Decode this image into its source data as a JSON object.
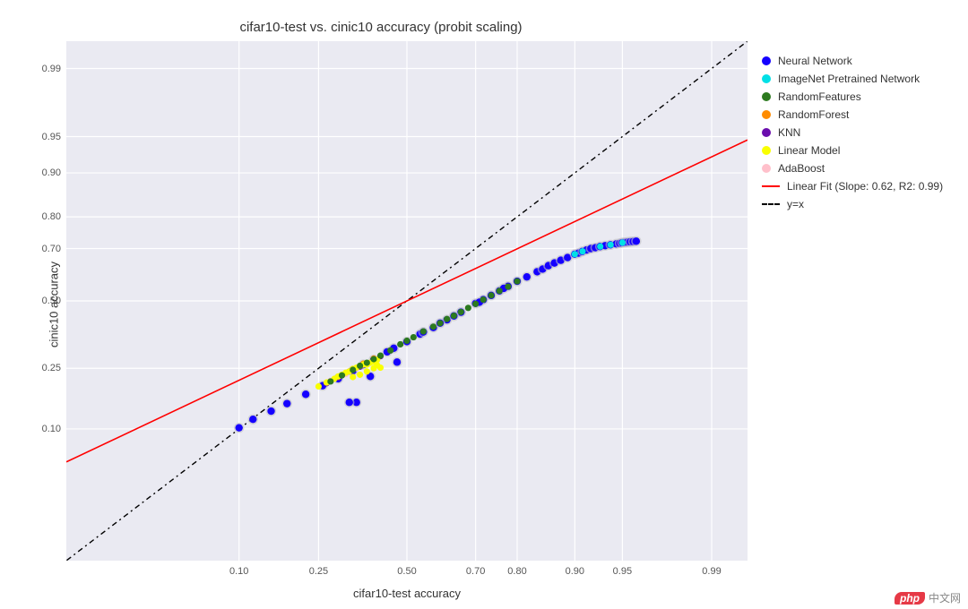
{
  "title": "cifar10-test vs. cinic10 accuracy (probit scaling)",
  "xlabel": "cifar10-test accuracy",
  "ylabel": "cinic10 accuracy",
  "background_color": "#eaeaf2",
  "grid_color": "#ffffff",
  "title_fontsize": 15,
  "label_fontsize": 13,
  "tick_fontsize": 11,
  "ticks": [
    0.1,
    0.25,
    0.5,
    0.7,
    0.8,
    0.9,
    0.95,
    0.99
  ],
  "probit_range": [
    -2.6,
    2.6
  ],
  "legend_items": [
    {
      "kind": "dot",
      "label": "Neural Network",
      "color": "#1500ff"
    },
    {
      "kind": "dot",
      "label": "ImageNet Pretrained Network",
      "color": "#00e0e6"
    },
    {
      "kind": "dot",
      "label": "RandomFeatures",
      "color": "#2d7a1f"
    },
    {
      "kind": "dot",
      "label": "RandomForest",
      "color": "#ff8c00"
    },
    {
      "kind": "dot",
      "label": "KNN",
      "color": "#6a0dad"
    },
    {
      "kind": "dot",
      "label": "Linear Model",
      "color": "#f9ff00"
    },
    {
      "kind": "dot",
      "label": "AdaBoost",
      "color": "#ffc0cb"
    },
    {
      "kind": "line",
      "label": "Linear Fit (Slope: 0.62, R2: 0.99)",
      "color": "#ff0000",
      "dash": "none"
    },
    {
      "kind": "line",
      "label": "y=x",
      "color": "#000000",
      "dash": "6,4,2,4"
    }
  ],
  "fit": {
    "slope": 0.62,
    "intercept": 0.0,
    "color": "#ff0000",
    "width": 1.6
  },
  "identity_line": {
    "color": "#000000",
    "width": 1.4,
    "dash": "6,4,2,4"
  },
  "marker_radius": 4.2,
  "series": {
    "Neural Network": {
      "color": "#1500ff",
      "xs": [
        0.1,
        0.12,
        0.15,
        0.18,
        0.22,
        0.26,
        0.3,
        0.34,
        0.37,
        0.4,
        0.44,
        0.46,
        0.5,
        0.54,
        0.58,
        0.62,
        0.66,
        0.7,
        0.72,
        0.74,
        0.76,
        0.78,
        0.8,
        0.82,
        0.84,
        0.85,
        0.86,
        0.87,
        0.88,
        0.89,
        0.9,
        0.905,
        0.91,
        0.915,
        0.92,
        0.925,
        0.93,
        0.935,
        0.94,
        0.945,
        0.948,
        0.95,
        0.952,
        0.954,
        0.956,
        0.958,
        0.96,
        0.47,
        0.39,
        0.35,
        0.33,
        0.55,
        0.6,
        0.64,
        0.71,
        0.77
      ],
      "ys": [
        0.102,
        0.118,
        0.135,
        0.152,
        0.175,
        0.198,
        0.218,
        0.242,
        0.262,
        0.278,
        0.305,
        0.318,
        0.342,
        0.37,
        0.395,
        0.425,
        0.455,
        0.49,
        0.505,
        0.522,
        0.54,
        0.558,
        0.578,
        0.595,
        0.615,
        0.625,
        0.638,
        0.648,
        0.658,
        0.668,
        0.68,
        0.684,
        0.69,
        0.695,
        0.7,
        0.703,
        0.707,
        0.71,
        0.713,
        0.716,
        0.718,
        0.72,
        0.721,
        0.722,
        0.723,
        0.724,
        0.725,
        0.27,
        0.225,
        0.155,
        0.155,
        0.378,
        0.412,
        0.44,
        0.495,
        0.55
      ]
    },
    "ImageNet Pretrained Network": {
      "color": "#00e0e6",
      "xs": [
        0.9,
        0.91,
        0.93,
        0.94,
        0.95
      ],
      "ys": [
        0.68,
        0.69,
        0.707,
        0.713,
        0.72
      ]
    },
    "RandomFeatures": {
      "color": "#2d7a1f",
      "xs": [
        0.28,
        0.31,
        0.34,
        0.36,
        0.38,
        0.4,
        0.42,
        0.45,
        0.48,
        0.5,
        0.52,
        0.55,
        0.58,
        0.6,
        0.62,
        0.64,
        0.66,
        0.68,
        0.7,
        0.72,
        0.74,
        0.76,
        0.78,
        0.8
      ],
      "ys": [
        0.21,
        0.228,
        0.245,
        0.258,
        0.268,
        0.28,
        0.292,
        0.31,
        0.332,
        0.345,
        0.358,
        0.38,
        0.398,
        0.412,
        0.428,
        0.441,
        0.456,
        0.472,
        0.488,
        0.505,
        0.522,
        0.54,
        0.557,
        0.578
      ]
    },
    "RandomForest": {
      "color": "#ff8c00",
      "xs": [
        0.3,
        0.34,
        0.37,
        0.4
      ],
      "ys": [
        0.222,
        0.248,
        0.265,
        0.282
      ]
    },
    "KNN": {
      "color": "#6a0dad",
      "xs": [
        0.27,
        0.3,
        0.33,
        0.36,
        0.42,
        0.45
      ],
      "ys": [
        0.205,
        0.222,
        0.24,
        0.255,
        0.29,
        0.31
      ]
    },
    "Linear Model": {
      "color": "#f9ff00",
      "xs": [
        0.25,
        0.27,
        0.29,
        0.3,
        0.31,
        0.32,
        0.33,
        0.34,
        0.35,
        0.36,
        0.37,
        0.38,
        0.39,
        0.4,
        0.4,
        0.41,
        0.41,
        0.42,
        0.38,
        0.36,
        0.34
      ],
      "ys": [
        0.196,
        0.207,
        0.218,
        0.225,
        0.23,
        0.236,
        0.24,
        0.248,
        0.252,
        0.258,
        0.262,
        0.262,
        0.268,
        0.272,
        0.25,
        0.278,
        0.26,
        0.252,
        0.24,
        0.23,
        0.223
      ]
    },
    "AdaBoost": {
      "color": "#ffc0cb",
      "xs": [
        0.28,
        0.32,
        0.35
      ],
      "ys": [
        0.212,
        0.232,
        0.25
      ]
    }
  },
  "watermark": {
    "logo_text": "php",
    "text": "中文网"
  }
}
